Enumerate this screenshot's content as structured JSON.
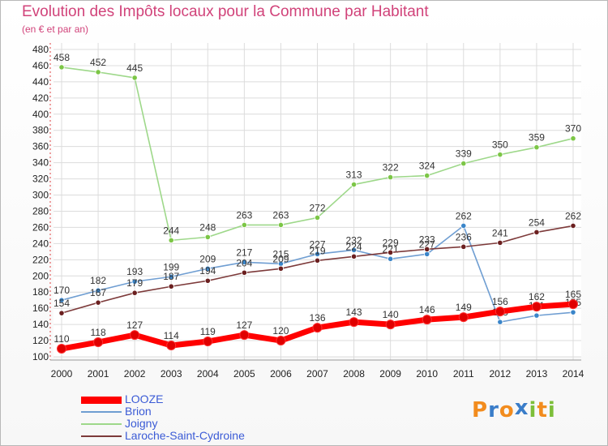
{
  "title": "Evolution des Impôts locaux pour la Commune par Habitant",
  "subtitle": "(en € et par an)",
  "logo": {
    "letters": [
      "P",
      "r",
      "o",
      "x",
      "i",
      "t",
      "i"
    ],
    "colors": [
      "#f28c1e",
      "#3a7dc9",
      "#f28c1e",
      "#3a7dc9",
      "#7dbf3a",
      "#f28c1e",
      "#7dbf3a"
    ]
  },
  "chart_data": {
    "type": "line",
    "x": [
      "2000",
      "2001",
      "2002",
      "2003",
      "2004",
      "2005",
      "2006",
      "2007",
      "2008",
      "2009",
      "2010",
      "2011",
      "2012",
      "2013",
      "2014"
    ],
    "ylim": [
      100,
      480
    ],
    "yticks": [
      "100",
      "120",
      "140",
      "160",
      "180",
      "200",
      "220",
      "240",
      "260",
      "280",
      "300",
      "320",
      "340",
      "360",
      "380",
      "400",
      "420",
      "440",
      "460",
      "480"
    ],
    "grid": true,
    "legend_position": "bottom-left",
    "series": [
      {
        "name": "Joigny",
        "color": "#9ed88a",
        "marker": "#7cc646",
        "values": [
          458,
          452,
          445,
          244,
          248,
          263,
          263,
          272,
          313,
          322,
          324,
          339,
          350,
          359,
          370
        ],
        "labels": [
          "458",
          "452",
          "445",
          "244",
          "248",
          "263",
          "263",
          "272",
          "313",
          "322",
          "324",
          "339",
          "350",
          "359",
          "370"
        ]
      },
      {
        "name": "Brion",
        "color": "#6f9ed2",
        "marker": "#3a85c9",
        "values": [
          170,
          182,
          193,
          199,
          209,
          217,
          215,
          227,
          232,
          221,
          227,
          262,
          143,
          151,
          155
        ],
        "labels": [
          "170",
          "182",
          "193",
          "199",
          "209",
          "217",
          "215",
          "227",
          "232",
          "221",
          "227",
          "262",
          "143",
          "151",
          "155"
        ]
      },
      {
        "name": "Laroche-Saint-Cydroine",
        "color": "#7d3a3a",
        "marker": "#6b1f1f",
        "values": [
          154,
          167,
          179,
          187,
          194,
          204,
          209,
          219,
          224,
          229,
          233,
          236,
          241,
          254,
          262
        ],
        "labels": [
          "154",
          "167",
          "179",
          "187",
          "194",
          "204",
          "209",
          "219",
          "224",
          "229",
          "233",
          "236",
          "241",
          "254",
          "262"
        ]
      },
      {
        "name": "LOOZE",
        "color": "#ff0000",
        "marker": "#e00000",
        "values": [
          110,
          118,
          127,
          114,
          119,
          127,
          120,
          136,
          143,
          140,
          146,
          149,
          156,
          162,
          165
        ],
        "labels": [
          "110",
          "118",
          "127",
          "114",
          "119",
          "127",
          "120",
          "136",
          "143",
          "140",
          "146",
          "149",
          "156",
          "162",
          "165"
        ]
      }
    ]
  }
}
